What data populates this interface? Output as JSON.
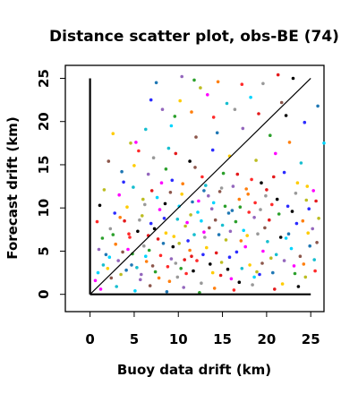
{
  "chart_data": {
    "type": "scatter",
    "title": "Distance scatter plot, obs-BE (74)",
    "xlabel": "Buoy data drift (km)",
    "ylabel": "Forecast drift (km)",
    "xlim": [
      -2.8,
      26.5
    ],
    "ylim": [
      -2.0,
      26.5
    ],
    "xticks": [
      "0",
      "5",
      "10",
      "15",
      "20",
      "25"
    ],
    "yticks": [
      "0",
      "5",
      "10",
      "15",
      "20",
      "25"
    ],
    "grid": false,
    "legend": "none",
    "reference_lines": [
      "y=x",
      "x=0 axis",
      "y=0 axis"
    ],
    "palette": [
      "#e41a1c",
      "#ff2a2a",
      "#2ca02c",
      "#1f77b4",
      "#00d5ff",
      "#ff00ff",
      "#ffcc00",
      "#000000",
      "#999999",
      "#ff7f0e",
      "#9467bd",
      "#8c564b",
      "#17becf",
      "#bcbd22",
      "#2b2bff"
    ],
    "points": [
      [
        7.5,
        24.5
      ],
      [
        10.4,
        25.2
      ],
      [
        11.8,
        24.8
      ],
      [
        14.5,
        24.6
      ],
      [
        17.2,
        24.3
      ],
      [
        19.6,
        24.4
      ],
      [
        21.3,
        25.4
      ],
      [
        23.0,
        25.0
      ],
      [
        6.9,
        22.5
      ],
      [
        10.2,
        22.4
      ],
      [
        12.5,
        23.9
      ],
      [
        13.3,
        23.1
      ],
      [
        15.5,
        22.1
      ],
      [
        18.2,
        22.8
      ],
      [
        21.7,
        22.2
      ],
      [
        25.8,
        21.8
      ],
      [
        8.2,
        21.4
      ],
      [
        9.6,
        20.6
      ],
      [
        11.5,
        21.1
      ],
      [
        14.0,
        20.5
      ],
      [
        16.4,
        21.4
      ],
      [
        19.1,
        20.9
      ],
      [
        22.2,
        20.7
      ],
      [
        24.3,
        19.9
      ],
      [
        2.6,
        18.6
      ],
      [
        4.6,
        17.5
      ],
      [
        5.2,
        17.6
      ],
      [
        6.3,
        19.1
      ],
      [
        9.2,
        19.5
      ],
      [
        12.0,
        18.2
      ],
      [
        14.4,
        18.7
      ],
      [
        17.3,
        19.2
      ],
      [
        20.4,
        18.4
      ],
      [
        22.6,
        17.6
      ],
      [
        5.5,
        16.6
      ],
      [
        7.2,
        15.8
      ],
      [
        9.7,
        16.3
      ],
      [
        11.3,
        15.4
      ],
      [
        13.9,
        16.7
      ],
      [
        15.8,
        16.0
      ],
      [
        18.8,
        15.5
      ],
      [
        21.0,
        16.3
      ],
      [
        23.9,
        15.2
      ],
      [
        26.5,
        17.5
      ],
      [
        2.1,
        15.4
      ],
      [
        3.6,
        14.2
      ],
      [
        6.6,
        13.9
      ],
      [
        8.6,
        14.5
      ],
      [
        10.5,
        12.8
      ],
      [
        12.7,
        13.6
      ],
      [
        14.9,
        12.3
      ],
      [
        16.7,
        13.9
      ],
      [
        19.4,
        12.9
      ],
      [
        22.0,
        14.1
      ],
      [
        24.6,
        12.5
      ],
      [
        1.6,
        12.1
      ],
      [
        3.3,
        11.5
      ],
      [
        4.9,
        12.4
      ],
      [
        7.6,
        11.2
      ],
      [
        9.1,
        11.8
      ],
      [
        11.6,
        10.7
      ],
      [
        13.4,
        11.4
      ],
      [
        15.3,
        10.2
      ],
      [
        17.9,
        11.6
      ],
      [
        20.6,
        10.4
      ],
      [
        23.3,
        11.7
      ],
      [
        25.6,
        10.8
      ],
      [
        1.1,
        10.3
      ],
      [
        2.8,
        9.4
      ],
      [
        4.2,
        10.1
      ],
      [
        5.9,
        9.1
      ],
      [
        7.9,
        9.8
      ],
      [
        9.9,
        8.7
      ],
      [
        12.2,
        9.5
      ],
      [
        14.2,
        8.6
      ],
      [
        16.1,
        9.7
      ],
      [
        18.6,
        8.9
      ],
      [
        21.4,
        9.3
      ],
      [
        24.1,
        8.5
      ],
      [
        0.8,
        8.4
      ],
      [
        2.3,
        7.6
      ],
      [
        3.9,
        8.5
      ],
      [
        5.4,
        7.3
      ],
      [
        6.9,
        8.2
      ],
      [
        8.6,
        7.1
      ],
      [
        10.8,
        7.9
      ],
      [
        12.9,
        7.2
      ],
      [
        15.0,
        8.0
      ],
      [
        17.4,
        7.4
      ],
      [
        19.8,
        7.7
      ],
      [
        22.5,
        7.0
      ],
      [
        25.2,
        7.6
      ],
      [
        1.4,
        6.5
      ],
      [
        2.9,
        5.8
      ],
      [
        4.5,
        6.6
      ],
      [
        6.1,
        5.6
      ],
      [
        7.7,
        6.4
      ],
      [
        9.4,
        5.5
      ],
      [
        11.1,
        6.2
      ],
      [
        13.2,
        5.4
      ],
      [
        15.4,
        6.3
      ],
      [
        17.6,
        5.5
      ],
      [
        20.1,
        6.1
      ],
      [
        22.8,
        5.3
      ],
      [
        25.7,
        6.0
      ],
      [
        1.8,
        4.6
      ],
      [
        3.2,
        3.9
      ],
      [
        4.8,
        4.7
      ],
      [
        6.4,
        3.8
      ],
      [
        8.0,
        4.5
      ],
      [
        9.7,
        3.6
      ],
      [
        11.5,
        4.4
      ],
      [
        13.6,
        3.5
      ],
      [
        15.8,
        4.3
      ],
      [
        18.1,
        3.4
      ],
      [
        20.5,
        4.2
      ],
      [
        23.1,
        3.3
      ],
      [
        25.4,
        4.0
      ],
      [
        0.9,
        2.5
      ],
      [
        2.4,
        1.9
      ],
      [
        4.1,
        2.8
      ],
      [
        5.7,
        1.7
      ],
      [
        7.4,
        2.6
      ],
      [
        9.0,
        1.5
      ],
      [
        10.9,
        2.4
      ],
      [
        12.6,
        1.3
      ],
      [
        14.8,
        2.2
      ],
      [
        16.9,
        1.4
      ],
      [
        19.2,
        2.3
      ],
      [
        21.8,
        1.2
      ],
      [
        24.4,
        2.0
      ],
      [
        1.2,
        0.6
      ],
      [
        3.0,
        0.9
      ],
      [
        5.1,
        0.4
      ],
      [
        6.8,
        1.0
      ],
      [
        8.7,
        0.3
      ],
      [
        10.6,
        0.8
      ],
      [
        12.4,
        0.2
      ],
      [
        14.1,
        0.7
      ],
      [
        16.3,
        0.5
      ],
      [
        18.4,
        1.1
      ],
      [
        20.9,
        0.6
      ],
      [
        23.6,
        0.9
      ],
      [
        3.8,
        13.0
      ],
      [
        5.0,
        14.9
      ],
      [
        6.0,
        11.0
      ],
      [
        8.1,
        12.9
      ],
      [
        8.9,
        16.9
      ],
      [
        10.1,
        10.2
      ],
      [
        11.9,
        14.7
      ],
      [
        12.9,
        12.0
      ],
      [
        13.8,
        9.9
      ],
      [
        15.1,
        14.0
      ],
      [
        16.9,
        11.0
      ],
      [
        18.3,
        13.3
      ],
      [
        19.9,
        11.4
      ],
      [
        20.8,
        13.6
      ],
      [
        22.9,
        9.6
      ],
      [
        24.8,
        9.9
      ],
      [
        2.0,
        3.0
      ],
      [
        3.5,
        2.3
      ],
      [
        4.3,
        5.2
      ],
      [
        5.3,
        3.1
      ],
      [
        6.3,
        4.4
      ],
      [
        7.1,
        3.3
      ],
      [
        8.3,
        5.9
      ],
      [
        9.2,
        4.1
      ],
      [
        10.3,
        3.0
      ],
      [
        11.3,
        5.1
      ],
      [
        12.1,
        3.9
      ],
      [
        13.0,
        6.6
      ],
      [
        14.3,
        4.8
      ],
      [
        15.6,
        2.9
      ],
      [
        16.6,
        4.9
      ],
      [
        17.8,
        6.8
      ],
      [
        18.9,
        2.6
      ],
      [
        19.6,
        5.0
      ],
      [
        21.1,
        4.6
      ],
      [
        22.2,
        6.5
      ],
      [
        23.8,
        4.4
      ],
      [
        24.9,
        5.6
      ],
      [
        1.0,
        5.2
      ],
      [
        2.6,
        6.9
      ],
      [
        3.4,
        8.9
      ],
      [
        4.4,
        7.0
      ],
      [
        5.6,
        8.6
      ],
      [
        6.6,
        6.8
      ],
      [
        7.3,
        7.6
      ],
      [
        8.4,
        8.8
      ],
      [
        9.5,
        6.7
      ],
      [
        10.1,
        5.9
      ],
      [
        11.0,
        8.3
      ],
      [
        11.8,
        6.9
      ],
      [
        12.6,
        8.5
      ],
      [
        13.5,
        7.7
      ],
      [
        14.6,
        6.9
      ],
      [
        15.9,
        7.3
      ],
      [
        16.5,
        8.4
      ],
      [
        17.1,
        6.2
      ],
      [
        18.0,
        9.5
      ],
      [
        19.0,
        7.0
      ],
      [
        20.3,
        8.6
      ],
      [
        21.6,
        6.6
      ],
      [
        23.4,
        8.2
      ],
      [
        24.7,
        7.1
      ],
      [
        25.9,
        8.8
      ],
      [
        0.6,
        1.6
      ],
      [
        1.5,
        3.4
      ],
      [
        2.2,
        4.3
      ],
      [
        3.7,
        4.9
      ],
      [
        4.7,
        3.4
      ],
      [
        5.8,
        2.3
      ],
      [
        6.7,
        5.1
      ],
      [
        7.8,
        1.9
      ],
      [
        8.8,
        3.2
      ],
      [
        9.9,
        2.0
      ],
      [
        10.7,
        4.0
      ],
      [
        11.7,
        2.7
      ],
      [
        12.8,
        4.6
      ],
      [
        13.9,
        2.5
      ],
      [
        14.9,
        3.7
      ],
      [
        16.0,
        1.8
      ],
      [
        17.2,
        3.0
      ],
      [
        18.6,
        2.0
      ],
      [
        19.5,
        3.6
      ],
      [
        20.7,
        2.5
      ],
      [
        22.0,
        3.9
      ],
      [
        23.2,
        2.4
      ],
      [
        24.2,
        3.5
      ],
      [
        25.5,
        2.7
      ],
      [
        6.2,
        10.4
      ],
      [
        7.0,
        12.0
      ],
      [
        8.5,
        10.5
      ],
      [
        9.3,
        13.2
      ],
      [
        10.4,
        11.6
      ],
      [
        11.4,
        9.2
      ],
      [
        12.3,
        10.8
      ],
      [
        13.1,
        12.6
      ],
      [
        14.0,
        10.6
      ],
      [
        14.7,
        11.9
      ],
      [
        15.7,
        9.4
      ],
      [
        16.2,
        12.5
      ],
      [
        17.0,
        10.1
      ],
      [
        17.7,
        12.2
      ],
      [
        18.7,
        10.6
      ],
      [
        19.3,
        9.8
      ],
      [
        20.0,
        12.1
      ],
      [
        21.2,
        11.0
      ],
      [
        22.4,
        10.2
      ],
      [
        23.5,
        12.9
      ],
      [
        24.5,
        10.9
      ],
      [
        25.3,
        12.0
      ]
    ]
  }
}
